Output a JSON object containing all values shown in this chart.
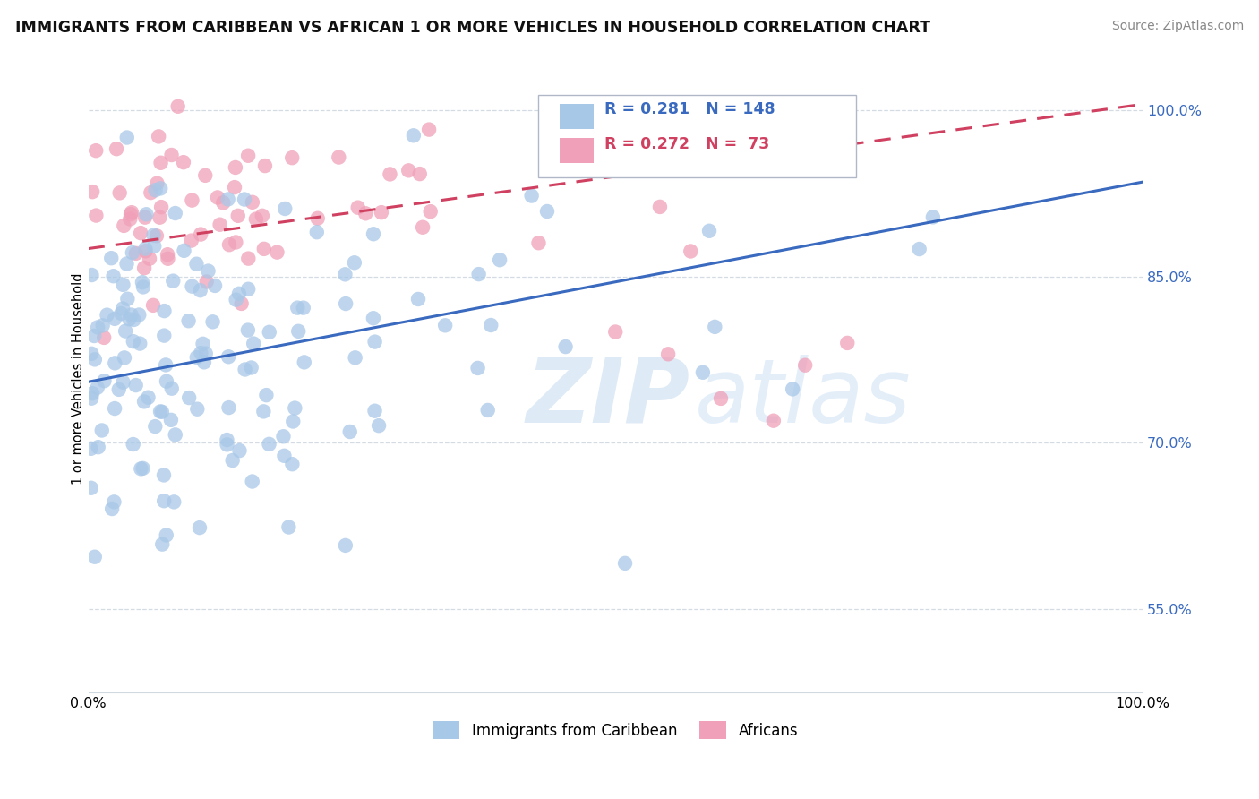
{
  "title": "IMMIGRANTS FROM CARIBBEAN VS AFRICAN 1 OR MORE VEHICLES IN HOUSEHOLD CORRELATION CHART",
  "source": "Source: ZipAtlas.com",
  "ylabel": "1 or more Vehicles in Household",
  "xlim": [
    0.0,
    1.0
  ],
  "ylim": [
    0.475,
    1.04
  ],
  "ytick_vals": [
    0.55,
    0.7,
    0.85,
    1.0
  ],
  "ytick_labels": [
    "55.0%",
    "70.0%",
    "85.0%",
    "100.0%"
  ],
  "xtick_vals": [
    0.0,
    1.0
  ],
  "xtick_labels": [
    "0.0%",
    "100.0%"
  ],
  "caribbean_color": "#a8c8e8",
  "african_color": "#f0a0b8",
  "caribbean_line_color": "#3a6abf",
  "african_line_color": "#d04060",
  "caribbean_R": 0.281,
  "caribbean_N": 148,
  "african_R": 0.272,
  "african_N": 73,
  "watermark_zip": "ZIP",
  "watermark_atlas": "atlas",
  "legend_caribbean": "Immigrants from Caribbean",
  "legend_african": "Africans",
  "caribbean_line_start_y": 0.755,
  "caribbean_line_end_y": 0.935,
  "african_line_start_y": 0.875,
  "african_line_end_y": 1.005,
  "grid_color": "#d0d8e0",
  "title_fontsize": 12.5,
  "source_fontsize": 10,
  "tick_fontsize": 11.5,
  "ylabel_fontsize": 10.5
}
